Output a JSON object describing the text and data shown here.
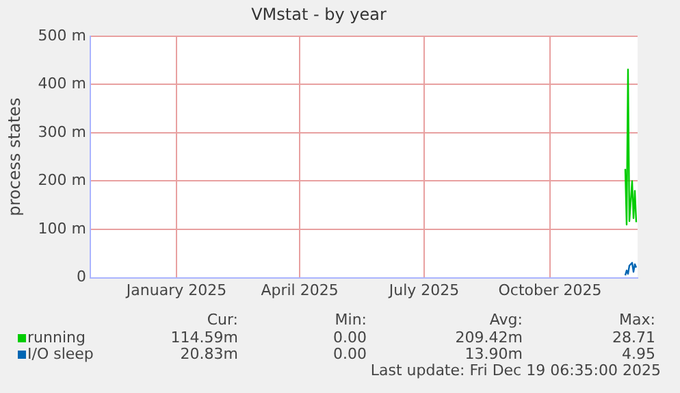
{
  "chart_data": {
    "type": "line",
    "title": "VMstat - by year",
    "ylabel": "process states",
    "xlim": [
      "2024-11-14",
      "2025-12-19"
    ],
    "xticks": [
      {
        "value": "2025-01-16",
        "label": "January 2025"
      },
      {
        "value": "2025-04-16",
        "label": "April 2025"
      },
      {
        "value": "2025-07-16",
        "label": "July 2025"
      },
      {
        "value": "2025-10-16",
        "label": "October 2025"
      }
    ],
    "ylim": [
      0,
      500
    ],
    "yticks": [
      {
        "value": 0,
        "label": "0"
      },
      {
        "value": 100,
        "label": "100 m"
      },
      {
        "value": 200,
        "label": "200 m"
      },
      {
        "value": 300,
        "label": "300 m"
      },
      {
        "value": 400,
        "label": "400 m"
      },
      {
        "value": 500,
        "label": "500 m"
      }
    ],
    "x": [
      "2025-12-10",
      "2025-12-11",
      "2025-12-12",
      "2025-12-13",
      "2025-12-15",
      "2025-12-16",
      "2025-12-17",
      "2025-12-18"
    ],
    "series": [
      {
        "name": "running",
        "color": "#00cc00",
        "values": [
          225,
          110,
          431,
          117,
          200,
          123,
          180,
          115
        ]
      },
      {
        "name": "I/O sleep",
        "color": "#0066b3",
        "values": [
          5,
          15,
          8,
          25,
          31,
          12,
          28,
          21
        ]
      }
    ],
    "grid": true,
    "legend": "bottom",
    "marker": "none",
    "annotations": [
      "Cur:",
      "Min:",
      "Avg:",
      "Max:",
      "114.59m",
      "0.00",
      "209.42m",
      "28.71",
      "20.83m",
      "0.00",
      "13.90m",
      "4.95",
      "Last update: Fri Dec 19 06:35:00 2025"
    ]
  }
}
